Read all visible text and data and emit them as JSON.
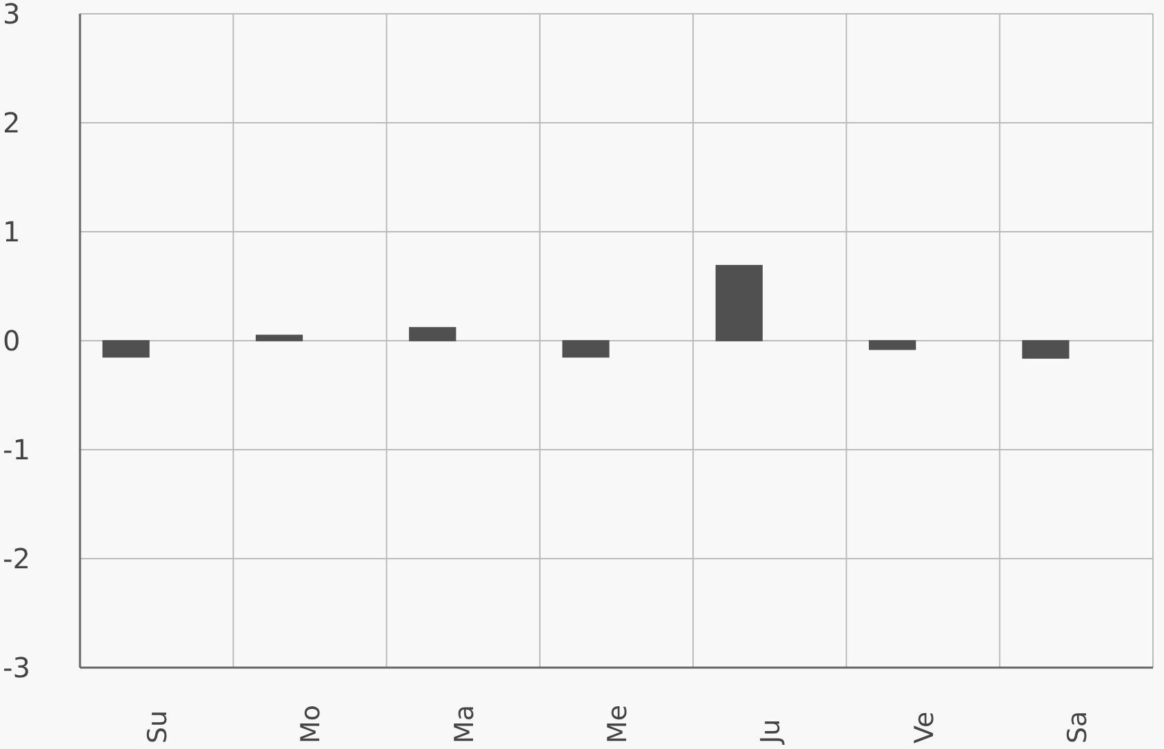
{
  "chart_data": {
    "type": "bar",
    "categories": [
      "Su",
      "Mo",
      "Ma",
      "Me",
      "Ju",
      "Ve",
      "Sa"
    ],
    "series": [
      {
        "color": "#505050",
        "values": [
          -0.15,
          0.05,
          0.12,
          -0.15,
          0.69,
          -0.08,
          -0.16
        ]
      },
      {
        "color": "#505050",
        "values": [
          0,
          0,
          0,
          0,
          0,
          0,
          0
        ]
      }
    ],
    "ylim": [
      -3,
      3
    ],
    "yticks": [
      -3,
      -2,
      -1,
      0,
      1,
      2,
      3
    ],
    "grid": true
  }
}
